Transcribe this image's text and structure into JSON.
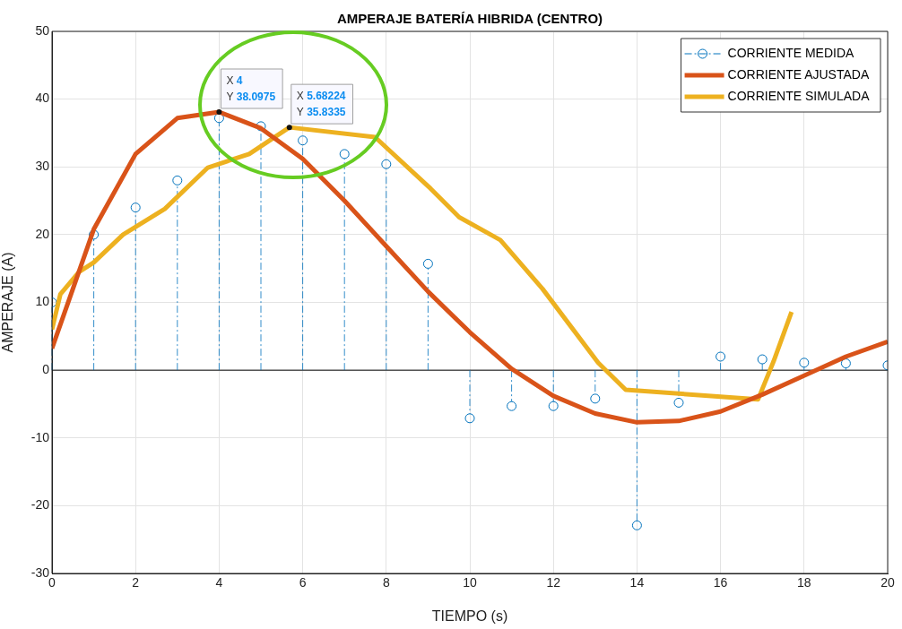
{
  "chart_data": {
    "type": "line",
    "title": "AMPERAJE BATERÍA HIBRIDA (CENTRO)",
    "xlabel": "TIEMPO (s)",
    "ylabel": "AMPERAJE (A)",
    "xlim": [
      0,
      20
    ],
    "xticks": [
      0,
      2,
      4,
      6,
      8,
      10,
      12,
      14,
      16,
      18,
      20
    ],
    "ylim": [
      -30,
      50
    ],
    "yticks": [
      -30,
      -20,
      -10,
      0,
      10,
      20,
      30,
      40,
      50
    ],
    "grid": true,
    "legend": "top right",
    "ref_lines": [
      {
        "axis": "y",
        "value": 0,
        "color": "#000000"
      }
    ],
    "series": [
      {
        "name": "CORRIENTE MEDIDA",
        "type": "lollipop",
        "color": "#0072bd",
        "marker": "circle",
        "line_style": "dashed",
        "x": [
          0,
          1,
          2,
          3,
          4,
          5,
          6,
          7,
          8,
          9,
          10,
          11,
          12,
          13,
          14,
          15,
          16,
          17,
          18,
          19,
          20
        ],
        "values": [
          10,
          20,
          24,
          28,
          37.2,
          36,
          33.9,
          31.9,
          30.4,
          15.7,
          -7.1,
          -5.3,
          -5.3,
          -4.2,
          -22.9,
          -4.8,
          2,
          1.6,
          1.1,
          1,
          0.7
        ]
      },
      {
        "name": "CORRIENTE AJUSTADA",
        "type": "line",
        "color": "#d95319",
        "marker": "none",
        "line_style": "solid",
        "x": [
          0,
          1,
          2,
          3,
          4,
          5,
          6,
          7,
          8,
          9,
          10,
          11,
          12,
          13,
          14,
          15,
          16,
          17,
          18,
          19,
          20
        ],
        "values": [
          3.2,
          20.8,
          31.9,
          37.2,
          38.0975,
          35.7,
          31.2,
          25,
          18.3,
          11.6,
          5.6,
          0.2,
          -3.8,
          -6.4,
          -7.7,
          -7.5,
          -6.1,
          -3.6,
          -0.8,
          2,
          4.2
        ]
      },
      {
        "name": "CORRIENTE SIMULADA",
        "type": "line",
        "color": "#edb120",
        "marker": "none",
        "line_style": "solid",
        "x": [
          0,
          0.2,
          0.65,
          1,
          1.7,
          2.7,
          3.73,
          4.72,
          5.68224,
          7.73,
          9.06,
          9.74,
          10.73,
          11.74,
          13.07,
          13.73,
          16.9,
          17.27,
          17.7
        ],
        "values": [
          6,
          11.2,
          14.5,
          15.9,
          20,
          23.8,
          29.9,
          31.9,
          35.8335,
          34.4,
          26.8,
          22.6,
          19.2,
          12,
          1.1,
          -2.9,
          -4.3,
          1.3,
          8.6
        ]
      }
    ],
    "annotations": [
      {
        "text": "X 4\nY 38.0975",
        "x": 4,
        "y": 38.0975
      },
      {
        "text": "X 5.68224\nY 35.8335",
        "x": 5.68224,
        "y": 35.8335
      }
    ]
  }
}
